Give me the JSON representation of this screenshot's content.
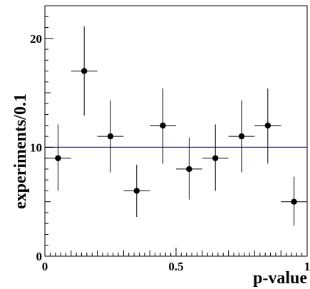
{
  "chart_data": {
    "type": "scatter",
    "xlabel": "p-value",
    "ylabel": "experiments/0.1",
    "xlim": [
      0,
      1
    ],
    "ylim": [
      0,
      23
    ],
    "x_ticks": [
      {
        "value": 0,
        "label": "0"
      },
      {
        "value": 0.5,
        "label": "0.5"
      },
      {
        "value": 1,
        "label": "1"
      }
    ],
    "y_ticks": [
      {
        "value": 0,
        "label": "0"
      },
      {
        "value": 10,
        "label": "10"
      },
      {
        "value": 20,
        "label": "20"
      }
    ],
    "grid": false,
    "reference_line": {
      "y": 10,
      "color": "#2b2bd6"
    },
    "bin_width": 0.1,
    "points": [
      {
        "x": 0.05,
        "y": 9,
        "err_low": 3.0,
        "err_high": 3.1
      },
      {
        "x": 0.15,
        "y": 17,
        "err_low": 4.1,
        "err_high": 4.1
      },
      {
        "x": 0.25,
        "y": 11,
        "err_low": 3.3,
        "err_high": 3.3
      },
      {
        "x": 0.35,
        "y": 6,
        "err_low": 2.4,
        "err_high": 2.4
      },
      {
        "x": 0.45,
        "y": 12,
        "err_low": 3.5,
        "err_high": 3.4
      },
      {
        "x": 0.55,
        "y": 8,
        "err_low": 2.8,
        "err_high": 2.9
      },
      {
        "x": 0.65,
        "y": 9,
        "err_low": 3.0,
        "err_high": 3.1
      },
      {
        "x": 0.75,
        "y": 11,
        "err_low": 3.3,
        "err_high": 3.3
      },
      {
        "x": 0.85,
        "y": 12,
        "err_low": 3.5,
        "err_high": 3.4
      },
      {
        "x": 0.95,
        "y": 5,
        "err_low": 2.2,
        "err_high": 2.3
      }
    ],
    "marker_color": "#000000",
    "axis_color": "#000000"
  }
}
